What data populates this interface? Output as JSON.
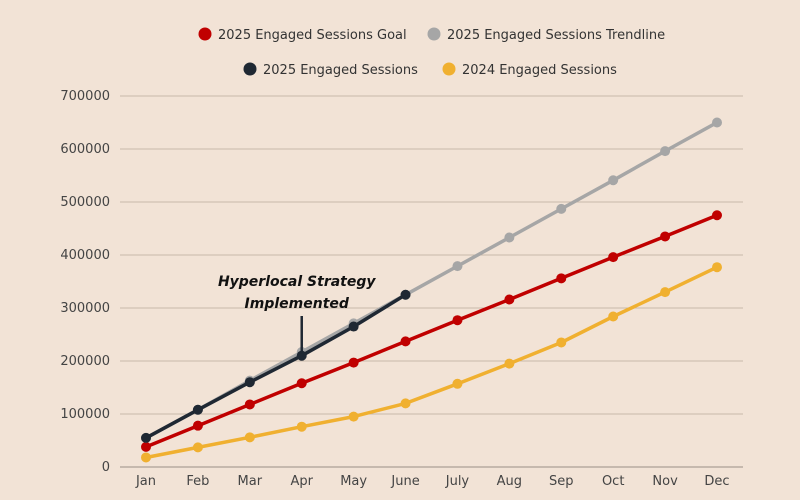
{
  "chart_data": {
    "type": "line",
    "categories": [
      "Jan",
      "Feb",
      "Mar",
      "Apr",
      "May",
      "June",
      "July",
      "Aug",
      "Sep",
      "Oct",
      "Nov",
      "Dec"
    ],
    "ylim": [
      0,
      700000
    ],
    "yticks": [
      0,
      100000,
      200000,
      300000,
      400000,
      500000,
      600000,
      700000
    ],
    "grid": true,
    "legend_position": "top-center",
    "series": [
      {
        "name": "2025 Engaged Sessions Goal",
        "color": "#c00000",
        "values": [
          38000,
          78000,
          118000,
          158000,
          197000,
          237000,
          277000,
          316000,
          356000,
          396000,
          435000,
          475000
        ]
      },
      {
        "name": "2025 Engaged Sessions Trendline",
        "color": "#a6a6a6",
        "values": [
          55000,
          108000,
          163000,
          217000,
          271000,
          325000,
          379000,
          433000,
          487000,
          541000,
          596000,
          650000
        ]
      },
      {
        "name": "2025 Engaged Sessions",
        "color": "#1f2833",
        "values": [
          55000,
          108000,
          160000,
          210000,
          265000,
          325000,
          null,
          null,
          null,
          null,
          null,
          null
        ]
      },
      {
        "name": "2024 Engaged Sessions",
        "color": "#f0b030",
        "values": [
          18000,
          37000,
          56000,
          76000,
          95000,
          120000,
          157000,
          195000,
          235000,
          284000,
          330000,
          377000
        ]
      }
    ],
    "annotations": [
      {
        "lines": [
          "Hyperlocal Strategy",
          "Implemented"
        ],
        "category": "Apr",
        "value": 210000
      }
    ]
  }
}
